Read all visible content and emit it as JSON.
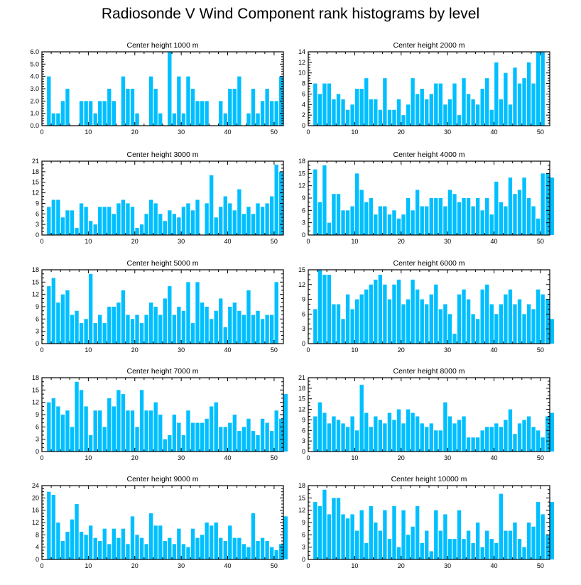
{
  "title": "Radiosonde V Wind Component rank histograms by level",
  "colors": {
    "bar": "#00bfff",
    "axis": "#000000"
  },
  "chart_data": [
    {
      "type": "bar",
      "title": "Center height 1000 m",
      "xlim": [
        0,
        52
      ],
      "ylim": [
        0,
        6
      ],
      "xticks": [
        0,
        10,
        20,
        30,
        40,
        50
      ],
      "yticks": [
        0,
        1,
        2,
        3,
        4,
        5,
        6
      ],
      "ytick_labels": [
        "0.0",
        "1.0",
        "2.0",
        "3.0",
        "4.0",
        "5.0",
        "6.0"
      ],
      "values": [
        0,
        4,
        1,
        1,
        2,
        3,
        0,
        0,
        2,
        2,
        2,
        1,
        2,
        2,
        3,
        2,
        0,
        4,
        3,
        3,
        1,
        0,
        0,
        4,
        3,
        1,
        0,
        6,
        1,
        4,
        1,
        4,
        3,
        2,
        2,
        2,
        0,
        0,
        2,
        1,
        3,
        3,
        4,
        0,
        1,
        3,
        1,
        2,
        3,
        2,
        2,
        4
      ]
    },
    {
      "type": "bar",
      "title": "Center height 2000 m",
      "xlim": [
        0,
        52
      ],
      "ylim": [
        0,
        14
      ],
      "xticks": [
        0,
        10,
        20,
        30,
        40,
        50
      ],
      "yticks": [
        0,
        2,
        4,
        6,
        8,
        10,
        12,
        14
      ],
      "ytick_labels": [
        "0",
        "2",
        "4",
        "6",
        "8",
        "10",
        "12",
        "14"
      ],
      "values": [
        0,
        8,
        6,
        8,
        8,
        5,
        6,
        5,
        3,
        4,
        7,
        7,
        9,
        5,
        5,
        3,
        9,
        3,
        3,
        5,
        2,
        4,
        9,
        6,
        7,
        5,
        6,
        8,
        8,
        4,
        5,
        8,
        2,
        9,
        6,
        5,
        4,
        7,
        9,
        3,
        12,
        5,
        10,
        4,
        11,
        8,
        9,
        12,
        8,
        14,
        14
      ]
    },
    {
      "type": "bar",
      "title": "Center height 3000 m",
      "xlim": [
        0,
        52
      ],
      "ylim": [
        0,
        21
      ],
      "xticks": [
        0,
        10,
        20,
        30,
        40,
        50
      ],
      "yticks": [
        0,
        3,
        6,
        9,
        12,
        15,
        18,
        21
      ],
      "ytick_labels": [
        "0",
        "3",
        "6",
        "9",
        "12",
        "15",
        "18",
        "21"
      ],
      "values": [
        0,
        8,
        10,
        10,
        5,
        7,
        7,
        2,
        9,
        8,
        4,
        3,
        8,
        8,
        8,
        6,
        9,
        10,
        9,
        8,
        2,
        3,
        6,
        10,
        9,
        6,
        4,
        7,
        6,
        5,
        8,
        9,
        7,
        10,
        0,
        9,
        17,
        5,
        8,
        11,
        9,
        7,
        13,
        6,
        8,
        6,
        9,
        8,
        9,
        11,
        20,
        18
      ]
    },
    {
      "type": "bar",
      "title": "Center height 4000 m",
      "xlim": [
        0,
        52
      ],
      "ylim": [
        0,
        18
      ],
      "xticks": [
        0,
        10,
        20,
        30,
        40,
        50
      ],
      "yticks": [
        0,
        3,
        6,
        9,
        12,
        15,
        18
      ],
      "ytick_labels": [
        "0",
        "3",
        "6",
        "9",
        "12",
        "15",
        "18"
      ],
      "values": [
        0,
        16,
        8,
        17,
        3,
        10,
        10,
        6,
        6,
        7,
        15,
        11,
        8,
        9,
        5,
        7,
        7,
        5,
        6,
        4,
        5,
        9,
        6,
        11,
        7,
        7,
        9,
        9,
        9,
        7,
        11,
        10,
        8,
        9,
        9,
        7,
        9,
        6,
        9,
        5,
        13,
        8,
        7,
        14,
        10,
        11,
        14,
        9,
        7,
        4,
        15,
        15,
        14
      ]
    },
    {
      "type": "bar",
      "title": "Center height 5000 m",
      "xlim": [
        0,
        52
      ],
      "ylim": [
        0,
        18
      ],
      "xticks": [
        0,
        10,
        20,
        30,
        40,
        50
      ],
      "yticks": [
        0,
        3,
        6,
        9,
        12,
        15,
        18
      ],
      "ytick_labels": [
        "0",
        "3",
        "6",
        "9",
        "12",
        "15",
        "18"
      ],
      "values": [
        0,
        14,
        16,
        10,
        12,
        13,
        7,
        8,
        5,
        6,
        17,
        5,
        7,
        5,
        9,
        9,
        10,
        13,
        7,
        6,
        7,
        5,
        7,
        10,
        9,
        7,
        11,
        14,
        7,
        9,
        8,
        15,
        5,
        15,
        10,
        9,
        6,
        8,
        11,
        4,
        9,
        10,
        8,
        7,
        13,
        7,
        8,
        6,
        7,
        7,
        15
      ]
    },
    {
      "type": "bar",
      "title": "Center height 6000 m",
      "xlim": [
        0,
        52
      ],
      "ylim": [
        0,
        15
      ],
      "xticks": [
        0,
        10,
        20,
        30,
        40,
        50
      ],
      "yticks": [
        0,
        3,
        6,
        9,
        12,
        15
      ],
      "ytick_labels": [
        "0",
        "3",
        "6",
        "9",
        "12",
        "15"
      ],
      "values": [
        0,
        7,
        15,
        14,
        14,
        8,
        8,
        5,
        10,
        7,
        9,
        10,
        11,
        12,
        13,
        14,
        12,
        9,
        12,
        13,
        8,
        9,
        13,
        11,
        9,
        8,
        10,
        12,
        7,
        8,
        6,
        2,
        10,
        11,
        9,
        6,
        5,
        11,
        12,
        8,
        6,
        8,
        10,
        11,
        8,
        9,
        6,
        8,
        7,
        11,
        10,
        9,
        5
      ]
    },
    {
      "type": "bar",
      "title": "Center height 7000 m",
      "xlim": [
        0,
        52
      ],
      "ylim": [
        0,
        18
      ],
      "xticks": [
        0,
        10,
        20,
        30,
        40,
        50
      ],
      "yticks": [
        0,
        3,
        6,
        9,
        12,
        15,
        18
      ],
      "ytick_labels": [
        "0",
        "3",
        "6",
        "9",
        "12",
        "15",
        "18"
      ],
      "values": [
        0,
        12,
        13,
        11,
        9,
        10,
        6,
        17,
        15,
        11,
        4,
        10,
        10,
        6,
        13,
        11,
        15,
        14,
        10,
        10,
        6,
        15,
        10,
        10,
        12,
        9,
        3,
        4,
        9,
        7,
        4,
        10,
        7,
        7,
        7,
        8,
        11,
        12,
        6,
        6,
        7,
        9,
        5,
        6,
        8,
        5,
        4,
        8,
        7,
        5,
        10,
        8,
        14
      ]
    },
    {
      "type": "bar",
      "title": "Center height 8000 m",
      "xlim": [
        0,
        52
      ],
      "ylim": [
        0,
        21
      ],
      "xticks": [
        0,
        10,
        20,
        30,
        40,
        50
      ],
      "yticks": [
        0,
        3,
        6,
        9,
        12,
        15,
        18,
        21
      ],
      "ytick_labels": [
        "0",
        "3",
        "6",
        "9",
        "12",
        "15",
        "18",
        "21"
      ],
      "values": [
        0,
        10,
        14,
        11,
        8,
        10,
        9,
        8,
        7,
        10,
        6,
        19,
        11,
        7,
        10,
        9,
        8,
        11,
        9,
        12,
        8,
        12,
        11,
        10,
        8,
        7,
        8,
        6,
        6,
        14,
        10,
        8,
        9,
        10,
        4,
        4,
        4,
        6,
        7,
        7,
        8,
        7,
        9,
        12,
        5,
        8,
        9,
        10,
        7,
        6,
        4,
        10,
        11
      ]
    },
    {
      "type": "bar",
      "title": "Center height 9000 m",
      "xlim": [
        0,
        52
      ],
      "ylim": [
        0,
        24
      ],
      "xticks": [
        0,
        10,
        20,
        30,
        40,
        50
      ],
      "yticks": [
        0,
        4,
        8,
        12,
        16,
        20,
        24
      ],
      "ytick_labels": [
        "0",
        "4",
        "8",
        "12",
        "16",
        "20",
        "24"
      ],
      "values": [
        0,
        22,
        21,
        12,
        6,
        9,
        13,
        18,
        9,
        8,
        11,
        7,
        6,
        10,
        5,
        10,
        7,
        10,
        5,
        14,
        8,
        7,
        5,
        15,
        11,
        11,
        6,
        7,
        5,
        10,
        5,
        4,
        10,
        7,
        8,
        12,
        11,
        12,
        7,
        6,
        11,
        7,
        7,
        5,
        4,
        15,
        6,
        7,
        6,
        4,
        3,
        5,
        14
      ]
    },
    {
      "type": "bar",
      "title": "Center height 10000 m",
      "xlim": [
        0,
        52
      ],
      "ylim": [
        0,
        18
      ],
      "xticks": [
        0,
        10,
        20,
        30,
        40,
        50
      ],
      "yticks": [
        0,
        3,
        6,
        9,
        12,
        15,
        18
      ],
      "ytick_labels": [
        "0",
        "3",
        "6",
        "9",
        "12",
        "15",
        "18"
      ],
      "values": [
        0,
        14,
        13,
        17,
        11,
        15,
        15,
        11,
        10,
        11,
        7,
        12,
        4,
        13,
        9,
        7,
        12,
        5,
        13,
        3,
        12,
        6,
        8,
        13,
        4,
        7,
        2,
        12,
        7,
        11,
        5,
        5,
        12,
        5,
        7,
        4,
        9,
        3,
        7,
        5,
        4,
        16,
        7,
        7,
        9,
        5,
        3,
        9,
        8,
        14,
        11,
        6,
        14
      ]
    }
  ]
}
